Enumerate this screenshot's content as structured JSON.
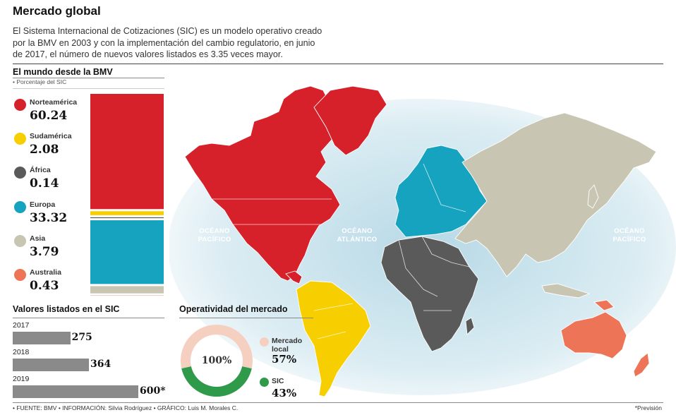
{
  "title": "Mercado global",
  "intro": "El Sistema Internacional de Cotizaciones (SIC) es un modelo operativo creado por la BMV en 2003 y con la implementación del cambio regulatorio, en junio de 2017, el número de nuevos valores listados es 3.35 veces mayor.",
  "colors": {
    "norteamerica": "#d6202a",
    "sudamerica": "#f7cf00",
    "africa": "#5a5a5a",
    "europa": "#16a3bf",
    "asia": "#c9c5b3",
    "australia": "#ee7457",
    "sic": "#2e9a4a",
    "local": "#f5cfc0",
    "bars": "#8a8a8a"
  },
  "chart_data": [
    {
      "type": "bar",
      "title": "El mundo desde la BMV",
      "subtitle": "• Porcentaje del SIC",
      "categories": [
        "Norteamérica",
        "Sudamérica",
        "África",
        "Europa",
        "Asia",
        "Australia"
      ],
      "values": [
        60.24,
        2.08,
        0.14,
        33.32,
        3.79,
        0.43
      ],
      "value_labels": [
        "60.24",
        "2.08",
        "0.14",
        "33.32",
        "3.79",
        "0.43"
      ],
      "stacked": true
    },
    {
      "type": "bar",
      "title": "Valores listados en el SIC",
      "categories": [
        "2017",
        "2018",
        "2019"
      ],
      "values": [
        275,
        364,
        600
      ],
      "value_labels": [
        "275",
        "364",
        "600*"
      ],
      "orientation": "horizontal"
    },
    {
      "type": "pie",
      "title": "Operatividad del mercado",
      "center_label": "100%",
      "categories": [
        "Mercado local",
        "SIC"
      ],
      "values": [
        57,
        43
      ],
      "value_labels": [
        "57%",
        "43%"
      ]
    }
  ],
  "map": {
    "oceans": [
      "OCÉANO\nPACÍFICO",
      "OCÉANO\nATLÁNTICO",
      "OCÉANO\nPACÍFICO"
    ]
  },
  "footer": "• FUENTE: BMV • INFORMACIÓN: Silvia Rodríguez • GRÁFICO: Luis M. Morales C.",
  "footnote": "*Previsión"
}
